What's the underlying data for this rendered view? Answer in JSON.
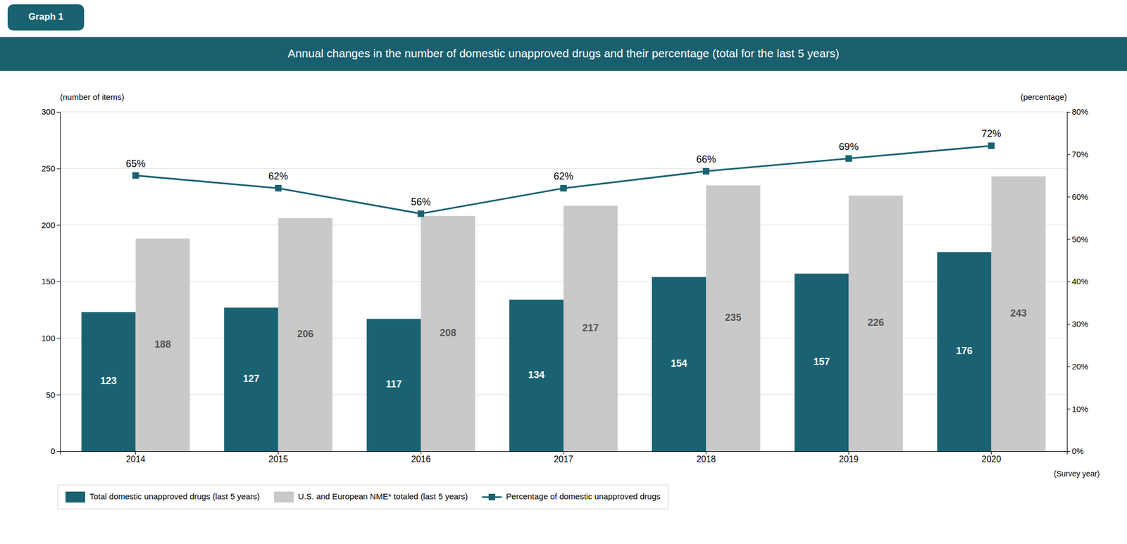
{
  "chart_data": {
    "type": "bar",
    "title": "Annual changes in the number of domestic unapproved drugs and their percentage (total for the last 5 years)",
    "annotations": [
      "Graph 1"
    ],
    "xlabel": "(Survey year)",
    "ylabel": "(number of items)",
    "y2label": "(percentage)",
    "categories": [
      "2014",
      "2015",
      "2016",
      "2017",
      "2018",
      "2019",
      "2020"
    ],
    "series": [
      {
        "name": "Total domestic unapproved drugs (last 5 years)",
        "color": "#1a6272",
        "type": "bar",
        "values": [
          123,
          127,
          117,
          134,
          154,
          157,
          176
        ]
      },
      {
        "name": "U.S. and European NME* totaled (last 5 years)",
        "color": "#c9c9c9",
        "type": "bar",
        "values": [
          188,
          206,
          208,
          217,
          235,
          226,
          243
        ]
      },
      {
        "name": "Percentage of domestic unapproved drugs",
        "color": "#1a6272",
        "type": "line",
        "axis": "y2",
        "marker": "square",
        "values": [
          0.65,
          0.62,
          0.56,
          0.62,
          0.66,
          0.69,
          0.72
        ],
        "value_labels": [
          "65%",
          "62%",
          "56%",
          "62%",
          "66%",
          "69%",
          "72%"
        ]
      }
    ],
    "ylim": [
      0,
      300
    ],
    "yticks": [
      0,
      50,
      100,
      150,
      200,
      250,
      300
    ],
    "y2lim": [
      0,
      0.8
    ],
    "y2ticks": [
      {
        "value": 0,
        "label": "0%"
      },
      {
        "value": 0.1,
        "label": "10%"
      },
      {
        "value": 0.2,
        "label": "20%"
      },
      {
        "value": 0.3,
        "label": "30%"
      },
      {
        "value": 0.4,
        "label": "40%"
      },
      {
        "value": 0.5,
        "label": "50%"
      },
      {
        "value": 0.6,
        "label": "60%"
      },
      {
        "value": 0.7,
        "label": "70%"
      },
      {
        "value": 0.8,
        "label": "80%"
      }
    ],
    "grid": true,
    "legend": "lower left",
    "data_labels": true
  }
}
